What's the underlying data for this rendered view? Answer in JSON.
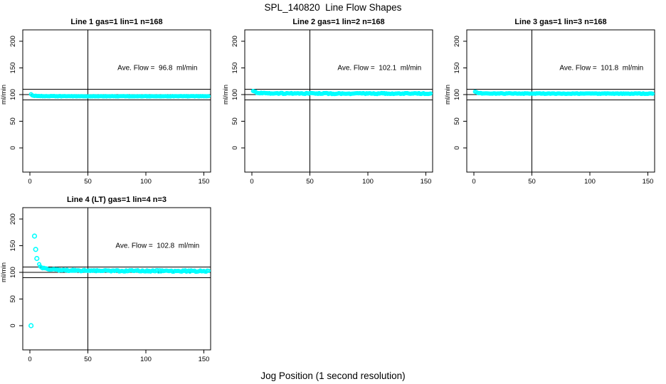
{
  "figure": {
    "title": "SPL_140820  Line Flow Shapes",
    "x_axis_label": "Jog Position (1 second resolution)",
    "y_axis_label": "ml/min",
    "colors": {
      "points": "#00ffff",
      "axis": "#000000",
      "background": "#ffffff"
    }
  },
  "chart_data": [
    {
      "id": "line1",
      "type": "scatter",
      "title": "Line 1 gas=1 lin=1 n=168",
      "annotation": "Ave. Flow =  96.8  ml/min",
      "annotation_xy": [
        110,
        150
      ],
      "ave_flow_ml_min": 96.8,
      "n": 168,
      "gas": 1,
      "lin": 1,
      "ylabel": "ml/min",
      "xlim": [
        0,
        150
      ],
      "ylim": [
        0,
        200
      ],
      "xticks": [
        0,
        50,
        100,
        150
      ],
      "yticks": [
        0,
        50,
        100,
        150,
        200
      ],
      "vline_x": 50,
      "hlines": [
        110,
        100,
        90
      ],
      "x_start": 1,
      "x_end": 154,
      "x_step": 1,
      "profile": [
        [
          1,
          100.5
        ],
        [
          2,
          99
        ],
        [
          3,
          98
        ],
        [
          5,
          97.4
        ],
        [
          10,
          97
        ],
        [
          60,
          96.8
        ],
        [
          154,
          96.8
        ]
      ],
      "jitter": 0.45,
      "outliers": []
    },
    {
      "id": "line2",
      "type": "scatter",
      "title": "Line 2 gas=1 lin=2 n=168",
      "annotation": "Ave. Flow =  102.1  ml/min",
      "annotation_xy": [
        110,
        150
      ],
      "ave_flow_ml_min": 102.1,
      "n": 168,
      "gas": 1,
      "lin": 2,
      "ylabel": "ml/min",
      "xlim": [
        0,
        150
      ],
      "ylim": [
        0,
        200
      ],
      "xticks": [
        0,
        50,
        100,
        150
      ],
      "yticks": [
        0,
        50,
        100,
        150,
        200
      ],
      "vline_x": 50,
      "hlines": [
        110,
        100,
        90
      ],
      "x_start": 1,
      "x_end": 154,
      "x_step": 1,
      "profile": [
        [
          1,
          107.5
        ],
        [
          2,
          106
        ],
        [
          3,
          104.8
        ],
        [
          5,
          103.4
        ],
        [
          8,
          102.7
        ],
        [
          15,
          102.2
        ],
        [
          60,
          102
        ],
        [
          154,
          102
        ]
      ],
      "jitter": 1.0,
      "outliers": []
    },
    {
      "id": "line3",
      "type": "scatter",
      "title": "Line 3 gas=1 lin=3 n=168",
      "annotation": "Ave. Flow =  101.8  ml/min",
      "annotation_xy": [
        110,
        150
      ],
      "ave_flow_ml_min": 101.8,
      "n": 168,
      "gas": 1,
      "lin": 3,
      "ylabel": "ml/min",
      "xlim": [
        0,
        150
      ],
      "ylim": [
        0,
        200
      ],
      "xticks": [
        0,
        50,
        100,
        150
      ],
      "yticks": [
        0,
        50,
        100,
        150,
        200
      ],
      "vline_x": 50,
      "hlines": [
        110,
        100,
        90
      ],
      "x_start": 1,
      "x_end": 154,
      "x_step": 1,
      "profile": [
        [
          1,
          105.5
        ],
        [
          2,
          104.3
        ],
        [
          3,
          103.4
        ],
        [
          6,
          102.5
        ],
        [
          12,
          102.1
        ],
        [
          60,
          101.8
        ],
        [
          154,
          101.8
        ]
      ],
      "jitter": 0.55,
      "outliers": []
    },
    {
      "id": "line4",
      "type": "scatter",
      "title": "Line 4 (LT) gas=1 lin=4 n=3",
      "annotation": "Ave. Flow =  102.8  ml/min",
      "annotation_xy": [
        110,
        150
      ],
      "ave_flow_ml_min": 102.8,
      "n": 3,
      "gas": 1,
      "lin": 4,
      "ylabel": "ml/min",
      "xlim": [
        0,
        150
      ],
      "ylim": [
        0,
        200
      ],
      "xticks": [
        0,
        50,
        100,
        150
      ],
      "yticks": [
        0,
        50,
        100,
        150,
        200
      ],
      "vline_x": 50,
      "hlines": [
        110,
        100,
        90
      ],
      "x_start": 8,
      "x_end": 154,
      "x_step": 1,
      "profile": [
        [
          8,
          114
        ],
        [
          10,
          109.5
        ],
        [
          13,
          107
        ],
        [
          18,
          105.2
        ],
        [
          28,
          104
        ],
        [
          50,
          103.2
        ],
        [
          90,
          102.8
        ],
        [
          154,
          102.4
        ]
      ],
      "jitter": 1.3,
      "outliers": [
        [
          1,
          0
        ],
        [
          4,
          168
        ],
        [
          5,
          143
        ],
        [
          6,
          126
        ]
      ]
    }
  ]
}
